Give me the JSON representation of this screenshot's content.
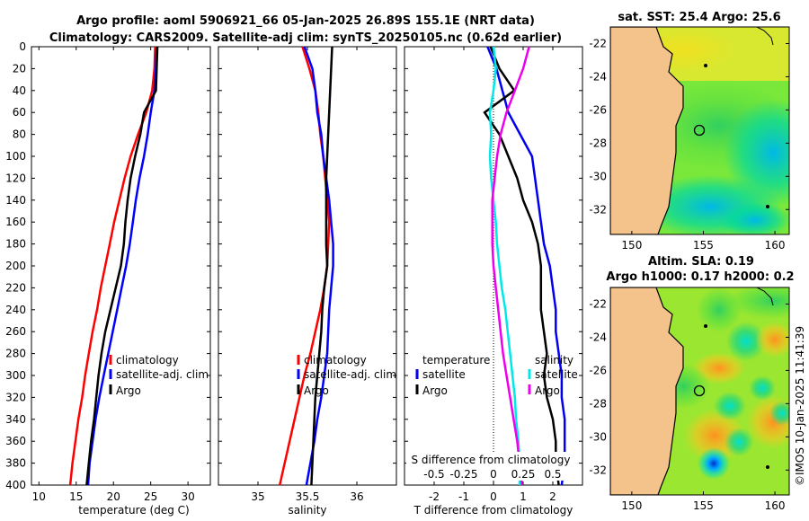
{
  "title_line1": "Argo profile: aoml 5906921_66 05-Jan-2025 26.89S 155.1E (NRT data)",
  "title_line2": "Climatology: CARS2009. Satellite-adj clim: synTS_20250105.nc (0.62d earlier)",
  "credit": "©IMOS 10-Jan-2025 11:41:39",
  "colors": {
    "climatology": "#ff0000",
    "satellite": "#0000ff",
    "argo": "#000000",
    "t_sat": "#0000ee",
    "s_sat": "#00e8e8",
    "s_argo": "#ee00ee"
  },
  "chart_data": [
    {
      "type": "line",
      "name": "temperature",
      "xlabel": "temperature (deg C)",
      "xlim": [
        9,
        33
      ],
      "ylim": [
        0,
        400
      ],
      "xticks": [
        "10",
        "15",
        "20",
        "25",
        "30"
      ],
      "xtick_values": [
        10,
        15,
        20,
        25,
        30
      ],
      "yticks": [
        "0",
        "20",
        "40",
        "60",
        "80",
        "100",
        "120",
        "140",
        "160",
        "180",
        "200",
        "220",
        "240",
        "260",
        "280",
        "300",
        "320",
        "340",
        "360",
        "380",
        "400"
      ],
      "legend": [
        "climatology",
        "satellite-adj. clim",
        "Argo"
      ],
      "series": [
        {
          "name": "climatology",
          "color": "#ff0000",
          "x": [
            25.6,
            25.5,
            25.2,
            24.4,
            23.3,
            22.3,
            21.5,
            20.8,
            20.1,
            19.5,
            18.9,
            18.3,
            17.8,
            17.2,
            16.7,
            16.2,
            15.8,
            15.3,
            14.9,
            14.5,
            14.2
          ],
          "y": [
            0,
            20,
            40,
            60,
            80,
            100,
            120,
            140,
            160,
            180,
            200,
            220,
            240,
            260,
            280,
            300,
            320,
            340,
            360,
            380,
            400
          ]
        },
        {
          "name": "satellite-adj. clim",
          "color": "#0000ff",
          "x": [
            25.8,
            25.7,
            25.5,
            25.0,
            24.6,
            24.1,
            23.5,
            23.0,
            22.6,
            22.2,
            21.7,
            21.1,
            20.5,
            19.9,
            19.3,
            18.7,
            18.1,
            17.6,
            17.2,
            16.8,
            16.6
          ],
          "y": [
            0,
            20,
            40,
            60,
            80,
            100,
            120,
            140,
            160,
            180,
            200,
            220,
            240,
            260,
            280,
            300,
            320,
            340,
            360,
            380,
            400
          ]
        },
        {
          "name": "Argo",
          "color": "#000000",
          "x": [
            25.9,
            25.8,
            25.7,
            24.1,
            23.6,
            22.9,
            22.3,
            21.9,
            21.6,
            21.4,
            21.0,
            20.3,
            19.6,
            18.9,
            18.4,
            18.0,
            17.7,
            17.4,
            17.0,
            16.7,
            16.4
          ],
          "y": [
            0,
            20,
            40,
            60,
            80,
            100,
            120,
            140,
            160,
            180,
            200,
            220,
            240,
            260,
            280,
            300,
            320,
            340,
            360,
            380,
            400
          ]
        }
      ]
    },
    {
      "type": "line",
      "name": "salinity",
      "xlabel": "salinity",
      "xlim": [
        34.6,
        36.4
      ],
      "ylim": [
        0,
        400
      ],
      "xticks": [
        "35",
        "35.5",
        "36"
      ],
      "xtick_values": [
        35,
        35.5,
        36
      ],
      "legend": [
        "climatology",
        "satellite-adj. clim",
        "Argo"
      ],
      "series": [
        {
          "name": "climatology",
          "color": "#ff0000",
          "x": [
            35.45,
            35.52,
            35.58,
            35.61,
            35.63,
            35.66,
            35.68,
            35.7,
            35.72,
            35.71,
            35.7,
            35.67,
            35.63,
            35.58,
            35.53,
            35.47,
            35.42,
            35.37,
            35.32,
            35.27,
            35.22
          ],
          "y": [
            0,
            20,
            40,
            60,
            80,
            100,
            120,
            140,
            160,
            180,
            200,
            220,
            240,
            260,
            280,
            300,
            320,
            340,
            360,
            380,
            400
          ]
        },
        {
          "name": "satellite-adj. clim",
          "color": "#0000ff",
          "x": [
            35.47,
            35.55,
            35.58,
            35.6,
            35.64,
            35.66,
            35.69,
            35.72,
            35.74,
            35.76,
            35.76,
            35.74,
            35.72,
            35.71,
            35.7,
            35.67,
            35.64,
            35.6,
            35.57,
            35.53,
            35.49
          ],
          "y": [
            0,
            20,
            40,
            60,
            80,
            100,
            120,
            140,
            160,
            180,
            200,
            220,
            240,
            260,
            280,
            300,
            320,
            340,
            360,
            380,
            400
          ]
        },
        {
          "name": "Argo",
          "color": "#000000",
          "x": [
            35.75,
            35.74,
            35.73,
            35.72,
            35.71,
            35.7,
            35.69,
            35.69,
            35.69,
            35.69,
            35.7,
            35.67,
            35.65,
            35.64,
            35.62,
            35.6,
            35.58,
            35.57,
            35.56,
            35.55,
            35.54
          ],
          "y": [
            0,
            20,
            40,
            60,
            80,
            100,
            120,
            140,
            160,
            180,
            200,
            220,
            240,
            260,
            280,
            300,
            320,
            340,
            360,
            380,
            400
          ]
        }
      ]
    },
    {
      "type": "line",
      "name": "difference from climatology",
      "xlabel": "T difference from climatology",
      "xlabel_top": "S difference from climatology",
      "xlim": [
        -3,
        3
      ],
      "ylim": [
        0,
        400
      ],
      "xticks": [
        "-2",
        "-1",
        "0",
        "1",
        "2"
      ],
      "xtick_values": [
        -2,
        -1,
        0,
        1,
        2
      ],
      "s_xticks": [
        "-0.5",
        "-0.25",
        "0",
        "0.25",
        "0.5"
      ],
      "s_xtick_values": [
        -0.5,
        -0.25,
        0,
        0.25,
        0.5
      ],
      "legend_left_title": "temperature",
      "legend_right_title": "salinity",
      "legend_left": [
        "satellite",
        "Argo"
      ],
      "legend_right": [
        "satellite",
        "Argo"
      ],
      "series": [
        {
          "name": "T satellite",
          "color": "#0000ee",
          "x": [
            -0.2,
            0.1,
            0.3,
            0.5,
            0.9,
            1.3,
            1.4,
            1.5,
            1.6,
            1.7,
            1.9,
            2.0,
            2.1,
            2.1,
            2.2,
            2.3,
            2.3,
            2.4,
            2.4,
            2.4,
            2.3
          ],
          "y": [
            0,
            20,
            40,
            60,
            80,
            100,
            120,
            140,
            160,
            180,
            200,
            220,
            240,
            260,
            280,
            300,
            320,
            340,
            360,
            380,
            400
          ]
        },
        {
          "name": "T Argo",
          "color": "#000000",
          "x": [
            -0.1,
            0.2,
            0.7,
            -0.3,
            0.2,
            0.5,
            0.8,
            1.0,
            1.3,
            1.5,
            1.6,
            1.6,
            1.6,
            1.7,
            1.8,
            1.7,
            1.8,
            2.0,
            2.1,
            2.1,
            2.2
          ],
          "y": [
            0,
            20,
            40,
            60,
            80,
            100,
            120,
            140,
            160,
            180,
            200,
            220,
            240,
            260,
            280,
            300,
            320,
            340,
            360,
            380,
            400
          ]
        },
        {
          "name": "S satellite",
          "color": "#00e8e8",
          "x": [
            0.0,
            0.02,
            0.0,
            -0.03,
            -0.02,
            -0.03,
            -0.02,
            0.0,
            0.02,
            0.03,
            0.05,
            0.07,
            0.1,
            0.12,
            0.14,
            0.16,
            0.18,
            0.19,
            0.21,
            0.22,
            0.22
          ],
          "y": [
            0,
            20,
            40,
            60,
            80,
            100,
            120,
            140,
            160,
            180,
            200,
            220,
            240,
            260,
            280,
            300,
            320,
            340,
            360,
            380,
            400
          ]
        },
        {
          "name": "S Argo",
          "color": "#ee00ee",
          "x": [
            0.3,
            0.25,
            0.18,
            0.11,
            0.06,
            0.03,
            0.01,
            -0.01,
            -0.01,
            -0.01,
            0.0,
            0.02,
            0.04,
            0.06,
            0.08,
            0.11,
            0.14,
            0.17,
            0.2,
            0.22,
            0.24
          ],
          "y": [
            0,
            20,
            40,
            60,
            80,
            100,
            120,
            140,
            160,
            180,
            200,
            220,
            240,
            260,
            280,
            300,
            320,
            340,
            360,
            380,
            400
          ]
        }
      ]
    },
    {
      "type": "heatmap",
      "name": "sat SST map",
      "title": "sat. SST: 25.4 Argo: 25.6",
      "xlim": [
        148.5,
        161
      ],
      "ylim": [
        -33.5,
        -21
      ],
      "xticks": [
        "150",
        "155",
        "160"
      ],
      "xtick_values": [
        150,
        155,
        160
      ],
      "yticks": [
        "-22",
        "-24",
        "-26",
        "-28",
        "-30",
        "-32"
      ],
      "ytick_values": [
        -22,
        -24,
        -26,
        -28,
        -30,
        -32
      ],
      "argo_position": [
        155.1,
        -26.89
      ]
    },
    {
      "type": "heatmap",
      "name": "altimetry SLA map",
      "title": "Altim. SLA: 0.19",
      "subtitle": "Argo h1000: 0.17 h2000: 0.2",
      "xlim": [
        148.5,
        161
      ],
      "ylim": [
        -33.5,
        -21
      ],
      "xticks": [
        "150",
        "155",
        "160"
      ],
      "xtick_values": [
        150,
        155,
        160
      ],
      "yticks": [
        "-22",
        "-24",
        "-26",
        "-28",
        "-30",
        "-32"
      ],
      "ytick_values": [
        -22,
        -24,
        -26,
        -28,
        -30,
        -32
      ],
      "argo_position": [
        155.1,
        -26.89
      ]
    }
  ]
}
